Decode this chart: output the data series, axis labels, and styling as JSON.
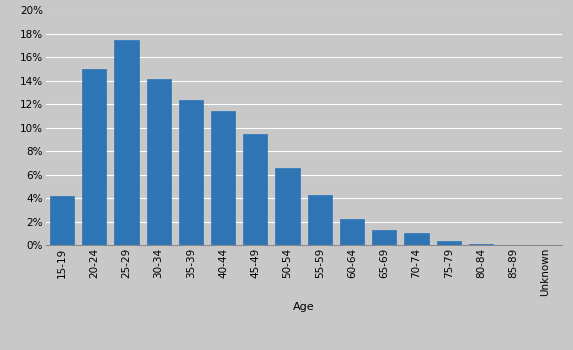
{
  "categories": [
    "15-19",
    "20-24",
    "25-29",
    "30-34",
    "35-39",
    "40-44",
    "45-49",
    "50-54",
    "55-59",
    "60-64",
    "65-69",
    "70-74",
    "75-79",
    "80-84",
    "85-89",
    "Unknown"
  ],
  "values": [
    4.2,
    15.0,
    17.5,
    14.2,
    12.4,
    11.4,
    9.5,
    6.6,
    4.3,
    2.2,
    1.3,
    1.0,
    0.3,
    0.1,
    0.0,
    0.0
  ],
  "bar_color": "#2E75B6",
  "background_color": "#C8C8C8",
  "plot_bg_color": "#C8C8C8",
  "xlabel": "Age",
  "ylim": [
    0,
    20
  ],
  "yticks": [
    0,
    2,
    4,
    6,
    8,
    10,
    12,
    14,
    16,
    18,
    20
  ],
  "grid_color": "#FFFFFF",
  "xlabel_fontsize": 8,
  "tick_fontsize": 7.5,
  "bar_width": 0.75
}
